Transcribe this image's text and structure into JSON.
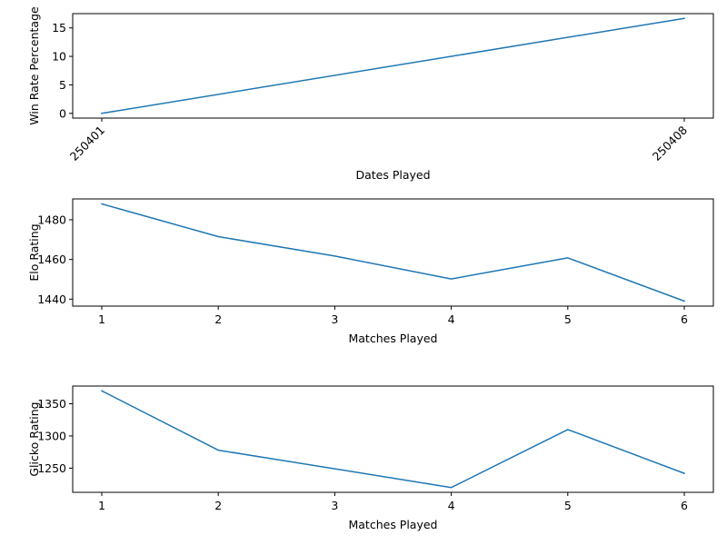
{
  "chart_data": [
    {
      "type": "line",
      "title": "",
      "xlabel": "Dates Played",
      "ylabel": "Win Rate Percentage",
      "x": [
        "250401",
        "250408"
      ],
      "series": [
        {
          "values": [
            0.0,
            16.67
          ]
        }
      ],
      "xticks": [
        "250401",
        "250408"
      ],
      "yticks": [
        0,
        5,
        10,
        15
      ],
      "ylim": [
        -0.83,
        17.5
      ],
      "grid": false,
      "color": "#1f77b4"
    },
    {
      "type": "line",
      "title": "",
      "xlabel": "Matches Played",
      "ylabel": "Elo Rating",
      "x": [
        1,
        2,
        3,
        4,
        5,
        6
      ],
      "series": [
        {
          "values": [
            1488,
            1471.5,
            1461.7,
            1450.2,
            1460.8,
            1439
          ]
        }
      ],
      "xticks": [
        1,
        2,
        3,
        4,
        5,
        6
      ],
      "yticks": [
        1440,
        1460,
        1480
      ],
      "ylim": [
        1436.5,
        1490.5
      ],
      "grid": false,
      "color": "#1f77b4"
    },
    {
      "type": "line",
      "title": "",
      "xlabel": "Matches Played",
      "ylabel": "Glicko Rating",
      "x": [
        1,
        2,
        3,
        4,
        5,
        6
      ],
      "series": [
        {
          "values": [
            1370,
            1278,
            1249,
            1220,
            1310,
            1242
          ]
        }
      ],
      "xticks": [
        1,
        2,
        3,
        4,
        5,
        6
      ],
      "yticks": [
        1250,
        1300,
        1350
      ],
      "ylim": [
        1212.5,
        1377.5
      ],
      "grid": false,
      "color": "#1f77b4"
    }
  ]
}
